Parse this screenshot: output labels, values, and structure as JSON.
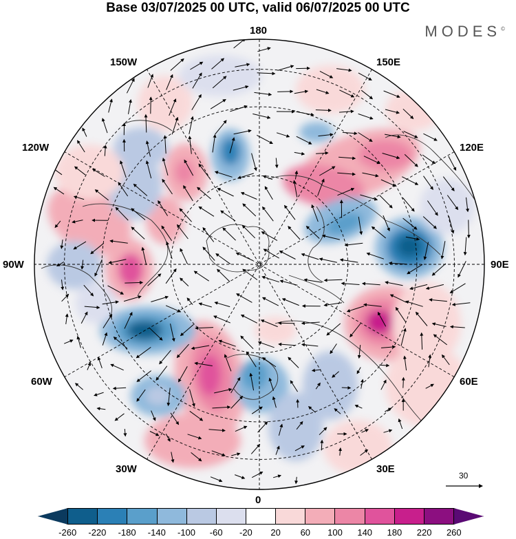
{
  "title": "Base 03/07/2025 00 UTC, valid 06/07/2025 00 UTC",
  "logo": "MODES",
  "logo_mark": "©",
  "longitude_labels": {
    "n180": "180",
    "e150": "150E",
    "e120": "120E",
    "e90": "90E",
    "e60": "60E",
    "e30": "30E",
    "s0": "0",
    "w30": "30W",
    "w60": "60W",
    "w90": "90W",
    "w120": "120W",
    "w150": "150W"
  },
  "reference_vector": {
    "label": "30"
  },
  "colorbar": {
    "ticks": [
      "-260",
      "-220",
      "-180",
      "-140",
      "-100",
      "-60",
      "-20",
      "20",
      "60",
      "100",
      "140",
      "180",
      "220",
      "260"
    ],
    "colors": [
      "#0b3a5e",
      "#0f5e8c",
      "#2b80b6",
      "#5a9fcb",
      "#8fb9dc",
      "#bac9e3",
      "#dcdfee",
      "#ffffff",
      "#f9d9d9",
      "#f3adb8",
      "#ec86a6",
      "#e0539c",
      "#c81f8c",
      "#8c0f80",
      "#5a0a74"
    ]
  }
}
